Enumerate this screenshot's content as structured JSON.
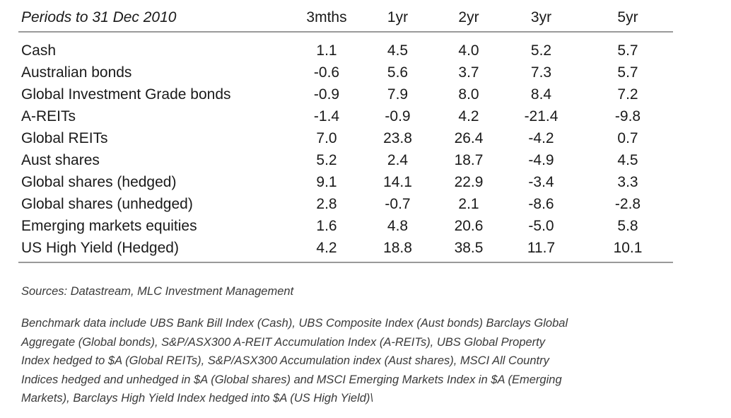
{
  "table": {
    "header": {
      "period": "Periods to 31 Dec 2010",
      "columns": [
        "3mths",
        "1yr",
        "2yr",
        "3yr",
        "5yr"
      ]
    },
    "rows": [
      {
        "label": "Cash",
        "values": [
          "1.1",
          "4.5",
          "4.0",
          "5.2",
          "5.7"
        ]
      },
      {
        "label": "Australian bonds",
        "values": [
          "-0.6",
          "5.6",
          "3.7",
          "7.3",
          "5.7"
        ]
      },
      {
        "label": "Global Investment Grade bonds",
        "values": [
          "-0.9",
          "7.9",
          "8.0",
          "8.4",
          "7.2"
        ]
      },
      {
        "label": "A-REITs",
        "values": [
          "-1.4",
          "-0.9",
          "4.2",
          "-21.4",
          "-9.8"
        ]
      },
      {
        "label": "Global REITs",
        "values": [
          "7.0",
          "23.8",
          "26.4",
          "-4.2",
          "0.7"
        ]
      },
      {
        "label": "Aust shares",
        "values": [
          "5.2",
          "2.4",
          "18.7",
          "-4.9",
          "4.5"
        ]
      },
      {
        "label": "Global shares (hedged)",
        "values": [
          "9.1",
          "14.1",
          "22.9",
          "-3.4",
          "3.3"
        ]
      },
      {
        "label": "Global shares (unhedged)",
        "values": [
          "2.8",
          "-0.7",
          "2.1",
          "-8.6",
          "-2.8"
        ]
      },
      {
        "label": "Emerging markets equities",
        "values": [
          "1.6",
          "4.8",
          "20.6",
          "-5.0",
          "5.8"
        ]
      },
      {
        "label": "US High Yield (Hedged)",
        "values": [
          "4.2",
          "18.8",
          "38.5",
          "11.7",
          "10.1"
        ]
      }
    ]
  },
  "notes": {
    "sources": "Sources: Datastream, MLC Investment Management",
    "benchmark_lines": [
      "Benchmark data include UBS Bank Bill Index (Cash), UBS Composite Index (Aust bonds) Barclays Global",
      "Aggregate (Global bonds), S&P/ASX300 A-REIT Accumulation Index (A-REITs), UBS Global Property",
      "Index hedged to $A (Global REITs), S&P/ASX300 Accumulation index (Aust shares), MSCI All Country",
      "Indices hedged and unhedged in $A (Global shares) and MSCI Emerging Markets Index in $A (Emerging",
      "Markets), Barclays High Yield Index hedged into $A (US High Yield)\\"
    ]
  }
}
